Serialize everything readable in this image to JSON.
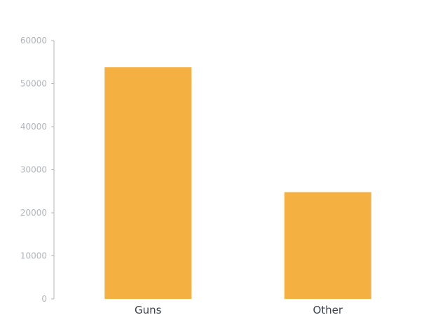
{
  "chart_data": {
    "type": "bar",
    "categories": [
      "Guns",
      "Other"
    ],
    "values": [
      53800,
      24800
    ],
    "title": "",
    "xlabel": "",
    "ylabel": "",
    "ylim": [
      0,
      60000
    ],
    "yticks": [
      0,
      10000,
      20000,
      30000,
      40000,
      50000,
      60000
    ],
    "grid": false,
    "bar_color": "#f5b042",
    "axis_color": "#b0b4bb",
    "category_label_color": "#3a4150"
  }
}
